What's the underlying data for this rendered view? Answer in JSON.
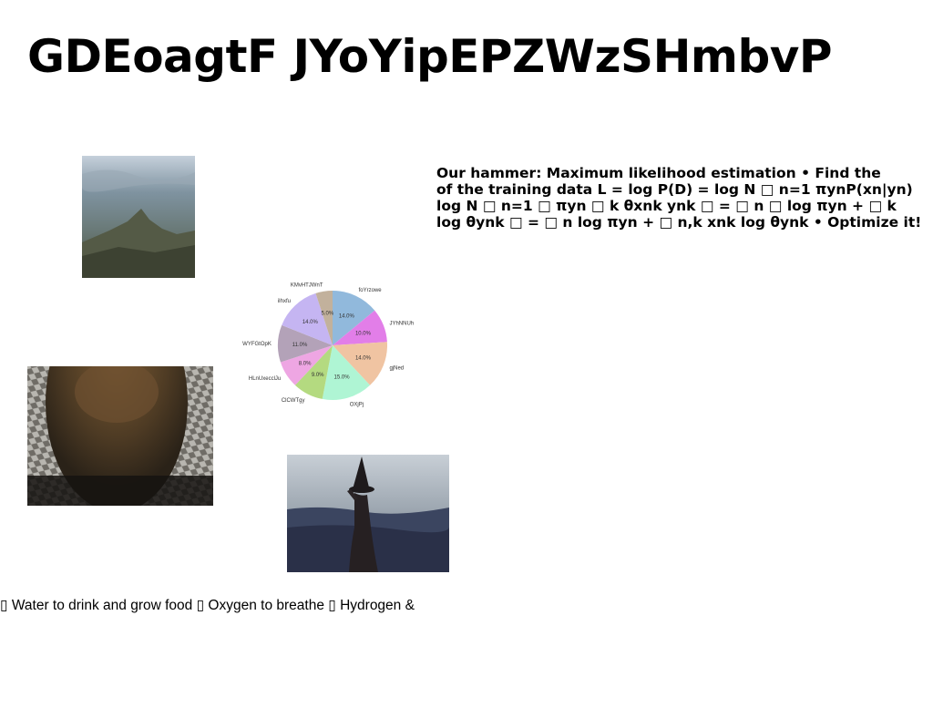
{
  "title": "GDEoagtF JYoYipEPZWzSHmbvP",
  "body_lines": [
    "Our hammer: Maximum likelihood estimation • Find the",
    "of the training data L = log P(D) = log N □ n=1 πynP(xn|yn)",
    "log N □ n=1 □ πyn □ k θxnk ynk □ = □ n □ log πyn + □ k",
    "log θynk □ = □ n log πyn + □ n,k xnk log θynk • Optimize it!"
  ],
  "footer_text": "▯ Water to drink and grow food ▯ Oxygen to breathe ▯ Hydrogen &",
  "images": {
    "mountain": "mountain-photo",
    "tunnel": "tunnel-photo",
    "witch": "witch-photo"
  },
  "chart_data": {
    "type": "pie",
    "title": "",
    "slices": [
      {
        "label": "foYrzowe",
        "value": 14.0,
        "pct_label": "14.0%",
        "color": "#91b9dc"
      },
      {
        "label": "JYhNNUh",
        "value": 10.0,
        "pct_label": "10.0%",
        "color": "#e27ee8"
      },
      {
        "label": "gjNed",
        "value": 14.0,
        "pct_label": "14.0%",
        "color": "#f0c4a2"
      },
      {
        "label": "OXjPj",
        "value": 15.0,
        "pct_label": "15.0%",
        "color": "#aff5d4"
      },
      {
        "label": "ClCWTgy",
        "value": 9.0,
        "pct_label": "9.0%",
        "color": "#b4da80"
      },
      {
        "label": "HLnUxecclJu",
        "value": 8.0,
        "pct_label": "8.0%",
        "color": "#eea6e3"
      },
      {
        "label": "WYFGtOpK",
        "value": 11.0,
        "pct_label": "11.0%",
        "color": "#b3a2b8"
      },
      {
        "label": "iIhxfu",
        "value": 14.0,
        "pct_label": "14.0%",
        "color": "#c5b5f2"
      },
      {
        "label": "KMvHTJWnT",
        "value": 5.0,
        "pct_label": "5.0%",
        "color": "#c2b19c"
      }
    ],
    "start_angle_deg": 90,
    "direction": "clockwise",
    "legend": "none"
  }
}
